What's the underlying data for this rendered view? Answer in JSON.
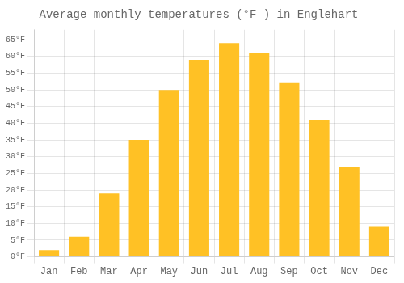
{
  "chart_data": {
    "type": "bar",
    "title": "Average monthly temperatures (°F ) in Englehart",
    "categories": [
      "Jan",
      "Feb",
      "Mar",
      "Apr",
      "May",
      "Jun",
      "Jul",
      "Aug",
      "Sep",
      "Oct",
      "Nov",
      "Dec"
    ],
    "values": [
      2,
      6,
      19,
      35,
      50,
      59,
      64,
      61,
      52,
      41,
      27,
      9
    ],
    "color": "#FFC125",
    "ylim": [
      0,
      68
    ],
    "yticks": [
      {
        "value": 0,
        "label": "0°F"
      },
      {
        "value": 5,
        "label": "5°F"
      },
      {
        "value": 10,
        "label": "10°F"
      },
      {
        "value": 15,
        "label": "15°F"
      },
      {
        "value": 20,
        "label": "20°F"
      },
      {
        "value": 25,
        "label": "25°F"
      },
      {
        "value": 30,
        "label": "30°F"
      },
      {
        "value": 35,
        "label": "35°F"
      },
      {
        "value": 40,
        "label": "40°F"
      },
      {
        "value": 45,
        "label": "45°F"
      },
      {
        "value": 50,
        "label": "50°F"
      },
      {
        "value": 55,
        "label": "55°F"
      },
      {
        "value": 60,
        "label": "60°F"
      },
      {
        "value": 65,
        "label": "65°F"
      }
    ],
    "grid": true
  }
}
